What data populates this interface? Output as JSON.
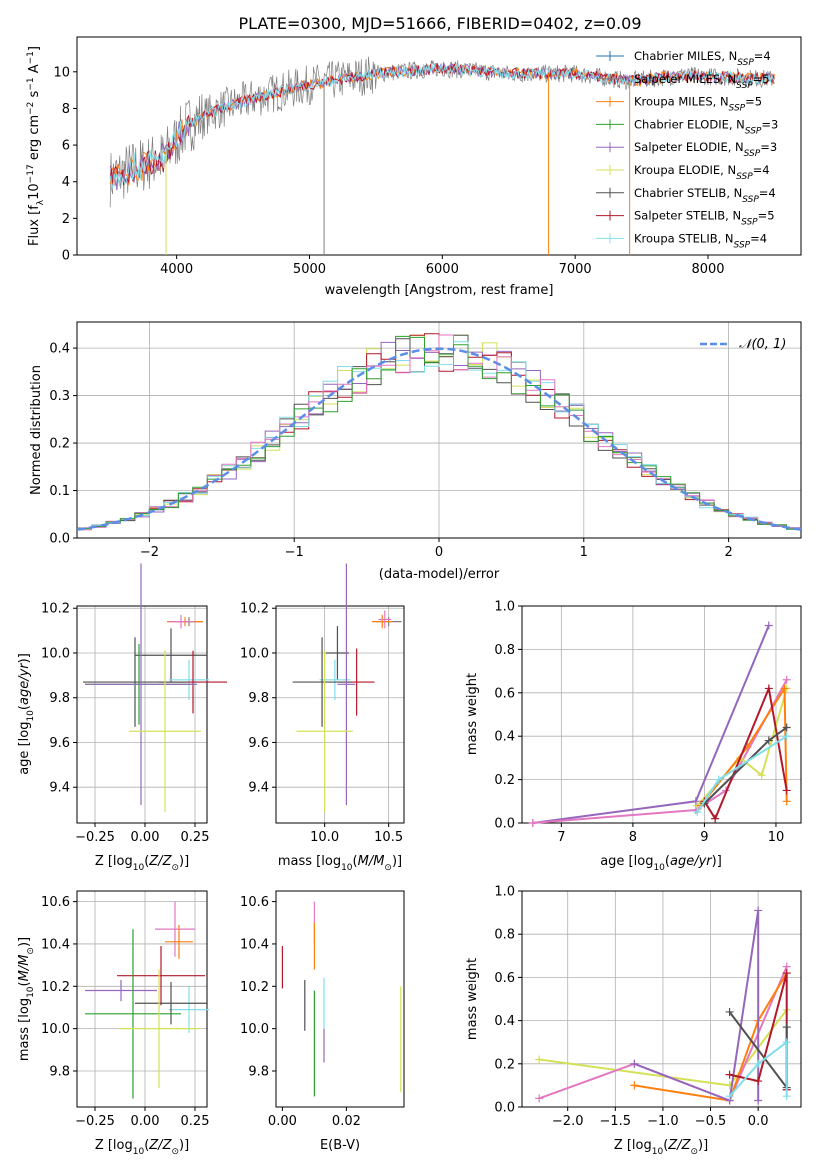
{
  "colors": {
    "miles_chabrier": "#1f77b4",
    "miles_salpeter": "#7f7f7f",
    "miles_kroupa": "#ff7f0e",
    "elodie_chabrier": "#2ca02c",
    "elodie_salpeter": "#9467bd",
    "elodie_kroupa": "#d4e157",
    "stelib_chabrier": "#505050",
    "stelib_salpeter": "#b2182b",
    "stelib_kroupa": "#80deea",
    "pink": "#e377c2",
    "gaussian": "#5b8ee6",
    "grid": "#b0b0b0"
  },
  "chart_data": [
    {
      "id": "spectrum",
      "type": "line",
      "title": "PLATE=0300, MJD=51666, FIBERID=0402, z=0.09",
      "xlabel": "wavelength [Angstrom, rest frame]",
      "ylabel": "Flux [fλ10⁻¹⁷ erg cm⁻² s⁻¹ A⁻¹]",
      "xlim": [
        3250,
        8700
      ],
      "ylim": [
        0,
        11.9
      ],
      "xticks": [
        4000,
        5000,
        6000,
        7000,
        8000
      ],
      "yticks": [
        0,
        2,
        4,
        6,
        8,
        10
      ],
      "continuum": [
        [
          3500,
          4.2
        ],
        [
          3700,
          4.8
        ],
        [
          3900,
          5.3
        ],
        [
          4000,
          6.3
        ],
        [
          4100,
          7.2
        ],
        [
          4300,
          7.9
        ],
        [
          4600,
          8.6
        ],
        [
          5000,
          9.3
        ],
        [
          5500,
          9.9
        ],
        [
          6000,
          10.2
        ],
        [
          6500,
          9.9
        ],
        [
          7000,
          9.9
        ],
        [
          7400,
          9.5
        ],
        [
          7800,
          9.8
        ],
        [
          8200,
          9.7
        ],
        [
          8500,
          9.6
        ]
      ],
      "legend_position": "right",
      "legend": [
        "Chabrier MILES, N_SSP=4",
        "Salpeter MILES, N_SSP=5",
        "Kroupa MILES, N_SSP=5",
        "Chabrier ELODIE, N_SSP=3",
        "Salpeter ELODIE, N_SSP=3",
        "Kroupa ELODIE, N_SSP=4",
        "Chabrier STELIB, N_SSP=4",
        "Salpeter STELIB, N_SSP=5",
        "Kroupa STELIB, N_SSP=4"
      ]
    },
    {
      "id": "residuals",
      "type": "histogram",
      "xlabel": "(data-model)/error",
      "ylabel": "Normed distribution",
      "xlim": [
        -2.5,
        2.5
      ],
      "ylim": [
        0,
        0.455
      ],
      "xticks": [
        -2,
        -1,
        0,
        1,
        2
      ],
      "yticks": [
        0.0,
        0.1,
        0.2,
        0.3,
        0.4
      ],
      "bin_width": 0.1,
      "legend": [
        "𝒩(0, 1)"
      ],
      "legend_position": "top-right"
    },
    {
      "id": "age_vs_Z",
      "type": "errorbar",
      "xlabel": "Z [log10(Z/Z☉)]",
      "ylabel": "age [log10(age/yr)]",
      "xlim": [
        -0.34,
        0.31
      ],
      "ylim": [
        9.24,
        10.21
      ],
      "xticks": [
        -0.25,
        0.0,
        0.25
      ],
      "yticks": [
        9.4,
        9.6,
        9.8,
        10.0,
        10.2
      ],
      "points": [
        {
          "c": "miles_salpeter",
          "x": 0.22,
          "y": 10.14,
          "xerr": 0.07,
          "yerr": 0.02
        },
        {
          "c": "miles_kroupa",
          "x": 0.2,
          "y": 10.14,
          "xerr": 0.09,
          "yerr": 0.02
        },
        {
          "c": "pink",
          "x": 0.18,
          "y": 10.14,
          "xerr": 0.06,
          "yerr": 0.03
        },
        {
          "c": "stelib_chabrier",
          "x": 0.13,
          "y": 9.99,
          "xerr": 0.18,
          "yerr": 0.12
        },
        {
          "c": "stelib_kroupa",
          "x": 0.22,
          "y": 9.88,
          "xerr": 0.1,
          "yerr": 0.09
        },
        {
          "c": "stelib_salpeter",
          "x": 0.24,
          "y": 9.87,
          "xerr": 0.17,
          "yerr": 0.14
        },
        {
          "c": "stelib_chabrier",
          "x": -0.05,
          "y": 9.87,
          "xerr": 0.26,
          "yerr": 0.2
        },
        {
          "c": "elodie_chabrier",
          "x": -0.03,
          "y": 9.86,
          "xerr": 0.27,
          "yerr": 0.18
        },
        {
          "c": "elodie_salpeter",
          "x": -0.02,
          "y": 9.86,
          "xerr": 0.28,
          "yerr": 0.54
        },
        {
          "c": "elodie_kroupa",
          "x": 0.1,
          "y": 9.65,
          "xerr": 0.18,
          "yerr": 0.36
        }
      ]
    },
    {
      "id": "age_vs_mass",
      "type": "errorbar",
      "xlabel": "mass [log10(M/M☉)]",
      "xlim": [
        9.62,
        10.62
      ],
      "ylim": [
        9.24,
        10.21
      ],
      "xticks": [
        10.0,
        10.5
      ],
      "yticks": [
        9.4,
        9.6,
        9.8,
        10.0,
        10.2
      ],
      "points": [
        {
          "c": "miles_salpeter",
          "x": 10.5,
          "y": 10.14,
          "xerr": 0.1,
          "yerr": 0.02
        },
        {
          "c": "miles_kroupa",
          "x": 10.45,
          "y": 10.14,
          "xerr": 0.08,
          "yerr": 0.03
        },
        {
          "c": "pink",
          "x": 10.47,
          "y": 10.15,
          "xerr": 0.05,
          "yerr": 0.04
        },
        {
          "c": "stelib_chabrier",
          "x": 10.1,
          "y": 10.0,
          "xerr": 0.09,
          "yerr": 0.12
        },
        {
          "c": "stelib_salpeter",
          "x": 10.25,
          "y": 9.87,
          "xerr": 0.14,
          "yerr": 0.15
        },
        {
          "c": "stelib_kroupa",
          "x": 10.08,
          "y": 9.88,
          "xerr": 0.12,
          "yerr": 0.09
        },
        {
          "c": "stelib_chabrier",
          "x": 9.98,
          "y": 9.87,
          "xerr": 0.23,
          "yerr": 0.2
        },
        {
          "c": "elodie_salpeter",
          "x": 10.17,
          "y": 9.86,
          "xerr": 0.07,
          "yerr": 0.54
        },
        {
          "c": "elodie_kroupa",
          "x": 10.0,
          "y": 9.65,
          "xerr": 0.22,
          "yerr": 0.36
        }
      ]
    },
    {
      "id": "weight_vs_age",
      "type": "line",
      "xlabel": "age [log10(age/yr)]",
      "ylabel": "mass weight",
      "xlim": [
        6.45,
        10.35
      ],
      "ylim": [
        0,
        1.0
      ],
      "xticks": [
        7,
        8,
        9,
        10
      ],
      "yticks": [
        0.0,
        0.2,
        0.4,
        0.6,
        0.8,
        1.0
      ],
      "series": [
        {
          "c": "elodie_salpeter",
          "points": [
            [
              6.6,
              0.0
            ],
            [
              8.88,
              0.1
            ],
            [
              9.9,
              0.91
            ]
          ]
        },
        {
          "c": "pink",
          "points": [
            [
              6.6,
              0.0
            ],
            [
              8.88,
              0.06
            ],
            [
              9.3,
              0.15
            ],
            [
              10.15,
              0.66
            ]
          ]
        },
        {
          "c": "elodie_kroupa",
          "points": [
            [
              8.9,
              0.08
            ],
            [
              9.5,
              0.3
            ],
            [
              9.8,
              0.22
            ],
            [
              10.15,
              0.62
            ]
          ]
        },
        {
          "c": "miles_kroupa",
          "points": [
            [
              8.95,
              0.08
            ],
            [
              9.6,
              0.35
            ],
            [
              10.12,
              0.62
            ],
            [
              10.15,
              0.1
            ]
          ]
        },
        {
          "c": "stelib_salpeter",
          "points": [
            [
              9.0,
              0.1
            ],
            [
              9.15,
              0.02
            ],
            [
              9.9,
              0.62
            ],
            [
              10.15,
              0.15
            ]
          ]
        },
        {
          "c": "stelib_chabrier",
          "points": [
            [
              9.0,
              0.09
            ],
            [
              9.9,
              0.38
            ],
            [
              10.15,
              0.44
            ]
          ]
        },
        {
          "c": "stelib_kroupa",
          "points": [
            [
              8.9,
              0.05
            ],
            [
              9.2,
              0.2
            ],
            [
              10.15,
              0.4
            ]
          ]
        }
      ]
    },
    {
      "id": "mass_vs_Z",
      "type": "errorbar",
      "xlabel": "Z [log10(Z/Z☉)]",
      "ylabel": "mass [log10(M/M☉)]",
      "xlim": [
        -0.34,
        0.31
      ],
      "ylim": [
        9.63,
        10.65
      ],
      "xticks": [
        -0.25,
        0.0,
        0.25
      ],
      "yticks": [
        9.8,
        10.0,
        10.2,
        10.4,
        10.6
      ],
      "points": [
        {
          "c": "pink",
          "x": 0.15,
          "y": 10.47,
          "xerr": 0.1,
          "yerr": 0.13
        },
        {
          "c": "miles_kroupa",
          "x": 0.17,
          "y": 10.41,
          "xerr": 0.07,
          "yerr": 0.08
        },
        {
          "c": "stelib_kroupa",
          "x": 0.22,
          "y": 10.09,
          "xerr": 0.1,
          "yerr": 0.11
        },
        {
          "c": "stelib_salpeter",
          "x": 0.08,
          "y": 10.25,
          "xerr": 0.22,
          "yerr": 0.14
        },
        {
          "c": "stelib_chabrier",
          "x": 0.13,
          "y": 10.12,
          "xerr": 0.18,
          "yerr": 0.1
        },
        {
          "c": "elodie_salpeter",
          "x": -0.12,
          "y": 10.18,
          "xerr": 0.18,
          "yerr": 0.05
        },
        {
          "c": "elodie_chabrier",
          "x": -0.06,
          "y": 10.07,
          "xerr": 0.24,
          "yerr": 0.4
        },
        {
          "c": "elodie_kroupa",
          "x": 0.07,
          "y": 10.0,
          "xerr": 0.2,
          "yerr": 0.28
        }
      ]
    },
    {
      "id": "mass_vs_EBV",
      "type": "errorbar",
      "xlabel": "E(B-V)",
      "xlim": [
        -0.002,
        0.038
      ],
      "ylim": [
        9.63,
        10.65
      ],
      "xticks": [
        0.0,
        0.02
      ],
      "yticks": [
        9.8,
        10.0,
        10.2,
        10.4,
        10.6
      ],
      "points": [
        {
          "c": "stelib_salpeter",
          "x": 0.0,
          "y": 10.29,
          "xerr": 0,
          "yerr": 0.1
        },
        {
          "c": "pink",
          "x": 0.01,
          "y": 10.5,
          "xerr": 0,
          "yerr": 0.1
        },
        {
          "c": "miles_kroupa",
          "x": 0.01,
          "y": 10.39,
          "xerr": 0,
          "yerr": 0.11
        },
        {
          "c": "stelib_chabrier",
          "x": 0.007,
          "y": 10.11,
          "xerr": 0,
          "yerr": 0.12
        },
        {
          "c": "elodie_chabrier",
          "x": 0.01,
          "y": 9.93,
          "xerr": 0,
          "yerr": 0.25
        },
        {
          "c": "stelib_kroupa",
          "x": 0.013,
          "y": 10.12,
          "xerr": 0,
          "yerr": 0.12
        },
        {
          "c": "elodie_salpeter",
          "x": 0.013,
          "y": 9.92,
          "xerr": 0,
          "yerr": 0.08
        },
        {
          "c": "elodie_kroupa",
          "x": 0.037,
          "y": 9.95,
          "xerr": 0,
          "yerr": 0.25
        }
      ]
    },
    {
      "id": "weight_vs_Z",
      "type": "line",
      "xlabel": "Z [log10(Z/Z☉)]",
      "ylabel": "mass weight",
      "xlim": [
        -2.48,
        0.45
      ],
      "ylim": [
        0,
        1.0
      ],
      "xticks": [
        -2.0,
        -1.5,
        -1.0,
        -0.5,
        0.0
      ],
      "yticks": [
        0.0,
        0.2,
        0.4,
        0.6,
        0.8,
        1.0
      ],
      "series": [
        {
          "c": "elodie_kroupa",
          "points": [
            [
              -2.3,
              0.22
            ],
            [
              -0.3,
              0.1
            ],
            [
              0.3,
              0.45
            ]
          ]
        },
        {
          "c": "pink",
          "points": [
            [
              -2.3,
              0.04
            ],
            [
              -1.3,
              0.2
            ],
            [
              -0.3,
              0.03
            ],
            [
              0.3,
              0.65
            ]
          ]
        },
        {
          "c": "miles_kroupa",
          "points": [
            [
              -1.3,
              0.1
            ],
            [
              -0.3,
              0.03
            ],
            [
              0.0,
              0.4
            ],
            [
              0.3,
              0.62
            ]
          ]
        },
        {
          "c": "elodie_salpeter",
          "points": [
            [
              -1.3,
              0.2
            ],
            [
              -0.3,
              0.03
            ],
            [
              0.0,
              0.91
            ],
            [
              0.0,
              0.03
            ]
          ]
        },
        {
          "c": "stelib_salpeter",
          "points": [
            [
              -0.3,
              0.15
            ],
            [
              0.0,
              0.12
            ],
            [
              0.3,
              0.62
            ],
            [
              0.3,
              0.08
            ]
          ]
        },
        {
          "c": "stelib_chabrier",
          "points": [
            [
              -0.3,
              0.44
            ],
            [
              0.3,
              0.09
            ],
            [
              0.3,
              0.37
            ]
          ]
        },
        {
          "c": "stelib_kroupa",
          "points": [
            [
              -0.3,
              0.05
            ],
            [
              0.0,
              0.2
            ],
            [
              0.3,
              0.3
            ],
            [
              0.3,
              0.05
            ]
          ]
        }
      ]
    }
  ]
}
